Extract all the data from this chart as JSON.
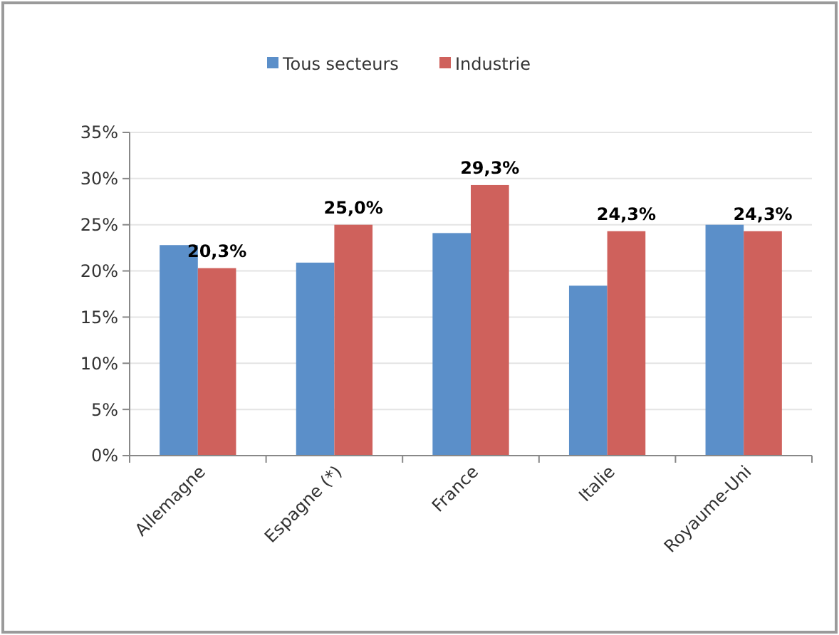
{
  "chart_data": {
    "type": "bar",
    "categories": [
      "Allemagne",
      "Espagne (*)",
      "France",
      "Italie",
      "Royaume-Uni"
    ],
    "series": [
      {
        "name": "Tous secteurs",
        "color": "#5b8fc9",
        "values": [
          22.8,
          20.9,
          24.1,
          18.4,
          25.0
        ]
      },
      {
        "name": "Industrie",
        "color": "#cf615c",
        "values": [
          20.3,
          25.0,
          29.3,
          24.3,
          24.3
        ],
        "value_labels": [
          "20,3%",
          "25,0%",
          "29,3%",
          "24,3%",
          "24,3%"
        ]
      }
    ],
    "ylim": [
      0,
      35
    ],
    "yticks": [
      {
        "value": 0,
        "label": "0%"
      },
      {
        "value": 5,
        "label": "5%"
      },
      {
        "value": 10,
        "label": "10%"
      },
      {
        "value": 15,
        "label": "15%"
      },
      {
        "value": 20,
        "label": "20%"
      },
      {
        "value": 25,
        "label": "25%"
      },
      {
        "value": 30,
        "label": "30%"
      },
      {
        "value": 35,
        "label": "35%"
      }
    ],
    "grid": "y",
    "legend": "top"
  }
}
